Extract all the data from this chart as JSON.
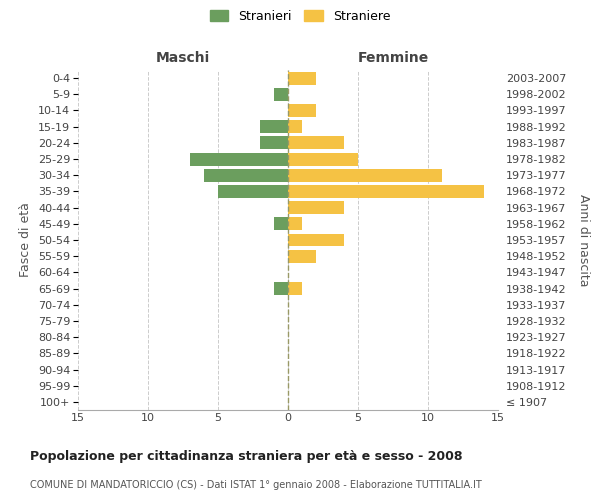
{
  "age_groups": [
    "100+",
    "95-99",
    "90-94",
    "85-89",
    "80-84",
    "75-79",
    "70-74",
    "65-69",
    "60-64",
    "55-59",
    "50-54",
    "45-49",
    "40-44",
    "35-39",
    "30-34",
    "25-29",
    "20-24",
    "15-19",
    "10-14",
    "5-9",
    "0-4"
  ],
  "birth_years": [
    "≤ 1907",
    "1908-1912",
    "1913-1917",
    "1918-1922",
    "1923-1927",
    "1928-1932",
    "1933-1937",
    "1938-1942",
    "1943-1947",
    "1948-1952",
    "1953-1957",
    "1958-1962",
    "1963-1967",
    "1968-1972",
    "1973-1977",
    "1978-1982",
    "1983-1987",
    "1988-1992",
    "1993-1997",
    "1998-2002",
    "2003-2007"
  ],
  "males": [
    0,
    0,
    0,
    0,
    0,
    0,
    0,
    1,
    0,
    0,
    0,
    1,
    0,
    5,
    6,
    7,
    2,
    2,
    0,
    1,
    0
  ],
  "females": [
    0,
    0,
    0,
    0,
    0,
    0,
    0,
    1,
    0,
    2,
    4,
    1,
    4,
    14,
    11,
    5,
    4,
    1,
    2,
    0,
    2
  ],
  "male_color": "#6b9e5e",
  "female_color": "#f5c244",
  "background_color": "#ffffff",
  "grid_color": "#cccccc",
  "title": "Popolazione per cittadinanza straniera per età e sesso - 2008",
  "subtitle": "COMUNE DI MANDATORICCIO (CS) - Dati ISTAT 1° gennaio 2008 - Elaborazione TUTTITALIA.IT",
  "left_label": "Maschi",
  "right_label": "Femmine",
  "ylabel": "Fasce di età",
  "right_ylabel": "Anni di nascita",
  "legend_male": "Stranieri",
  "legend_female": "Straniere",
  "xlim": 15,
  "bar_height": 0.8
}
